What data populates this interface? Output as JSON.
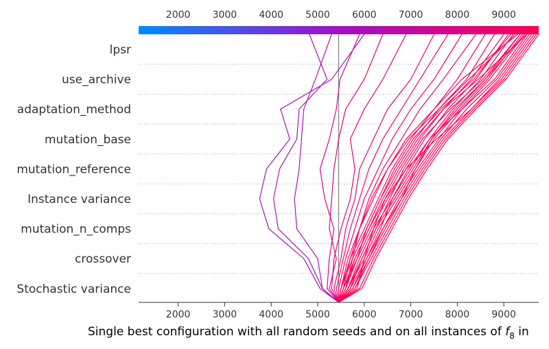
{
  "chart_data": {
    "type": "line",
    "xlabel_main": "Single best configuration with all random seeds and on all instances of ",
    "xlabel_symbol": "f",
    "xlabel_subscript": "8",
    "xlabel_tail": " in",
    "ylabel": "",
    "x_ticks": [
      "2000",
      "3000",
      "4000",
      "5000",
      "6000",
      "7000",
      "8000",
      "9000"
    ],
    "xlim": [
      1150,
      9750
    ],
    "base_value": 5450,
    "features": [
      "lpsr",
      "use_archive",
      "adaptation_method",
      "mutation_base",
      "mutation_reference",
      "Instance variance",
      "mutation_n_comps",
      "crossover",
      "Stochastic variance"
    ],
    "colorbar": {
      "min_color": "#008bfb",
      "mid_color": "#a010c8",
      "max_color": "#ff0051"
    },
    "grid": "horizontal dotted",
    "series": [
      {
        "values": [
          5450,
          5050,
          4700,
          3950,
          3750,
          3900,
          4400,
          4200,
          5300,
          6000
        ],
        "color": "#a116b5"
      },
      {
        "values": [
          5450,
          5100,
          4800,
          4150,
          4050,
          4180,
          4550,
          4600,
          5200,
          4820
        ],
        "color": "#a816b0"
      },
      {
        "values": [
          5450,
          5100,
          5000,
          4550,
          4500,
          4600,
          4650,
          4700,
          4950,
          5300
        ],
        "color": "#ad14ab"
      },
      {
        "values": [
          5450,
          5200,
          5250,
          5350,
          5150,
          5050,
          5250,
          5400,
          5480,
          5900
        ],
        "color": "#d0068c"
      },
      {
        "values": [
          5450,
          5250,
          5400,
          5250,
          5300,
          5350,
          5450,
          5600,
          6000,
          6400
        ],
        "color": "#d90482"
      },
      {
        "values": [
          5450,
          5300,
          5350,
          5500,
          5700,
          5800,
          5700,
          6000,
          6400,
          6900
        ],
        "color": "#e1027b"
      },
      {
        "values": [
          5450,
          5350,
          5500,
          5600,
          5800,
          5900,
          6200,
          6500,
          7000,
          7500
        ],
        "color": "#e80276"
      },
      {
        "values": [
          5450,
          5400,
          5550,
          5700,
          5900,
          6100,
          6400,
          6800,
          7200,
          7800
        ],
        "color": "#ed0171"
      },
      {
        "values": [
          5450,
          5450,
          5600,
          5800,
          6000,
          6300,
          6600,
          7000,
          7500,
          8100
        ],
        "color": "#f1016c"
      },
      {
        "values": [
          5450,
          5500,
          5650,
          5900,
          6100,
          6400,
          6800,
          7200,
          7700,
          8400
        ],
        "color": "#f40168"
      },
      {
        "values": [
          5450,
          5550,
          5700,
          6000,
          6300,
          6600,
          7000,
          7500,
          8000,
          8600
        ],
        "color": "#f70165"
      },
      {
        "values": [
          5450,
          5500,
          5750,
          6050,
          6350,
          6700,
          7100,
          7600,
          8200,
          8800
        ],
        "color": "#f90162"
      },
      {
        "values": [
          5450,
          5600,
          5800,
          6100,
          6450,
          6800,
          7200,
          7700,
          8300,
          9000
        ],
        "color": "#fa0160"
      },
      {
        "values": [
          5450,
          5550,
          5850,
          6150,
          6500,
          6900,
          7300,
          7800,
          8400,
          9100
        ],
        "color": "#fb005e"
      },
      {
        "values": [
          5450,
          5650,
          5900,
          6200,
          6600,
          7000,
          7400,
          7900,
          8500,
          9200
        ],
        "color": "#fc005c"
      },
      {
        "values": [
          5450,
          5600,
          5750,
          5900,
          6200,
          6500,
          6900,
          7500,
          8100,
          9300
        ],
        "color": "#fc005b"
      },
      {
        "values": [
          5450,
          5700,
          5950,
          6250,
          6650,
          7050,
          7450,
          8000,
          8600,
          9350
        ],
        "color": "#fd005a"
      },
      {
        "values": [
          5450,
          5650,
          6000,
          6300,
          6700,
          7100,
          7500,
          8050,
          8650,
          9400
        ],
        "color": "#fd0059"
      },
      {
        "values": [
          5450,
          5700,
          6050,
          6400,
          6750,
          7150,
          7600,
          8100,
          8700,
          9450
        ],
        "color": "#fd0058"
      },
      {
        "values": [
          5450,
          5750,
          6050,
          6350,
          6600,
          6950,
          7400,
          8100,
          8800,
          9500
        ],
        "color": "#fe0057"
      },
      {
        "values": [
          5450,
          5800,
          6100,
          6400,
          6800,
          7200,
          7650,
          8200,
          8850,
          9550
        ],
        "color": "#fe0056"
      },
      {
        "values": [
          5450,
          5850,
          6000,
          6200,
          6450,
          6900,
          7550,
          8300,
          8900,
          9600
        ],
        "color": "#fe0055"
      },
      {
        "values": [
          5450,
          5800,
          6150,
          6500,
          6850,
          7250,
          7700,
          8300,
          8950,
          9650
        ],
        "color": "#fe0054"
      },
      {
        "values": [
          5450,
          5900,
          6200,
          6550,
          6900,
          7300,
          7750,
          8350,
          9000,
          9700
        ],
        "color": "#ff0053"
      },
      {
        "values": [
          5450,
          5950,
          6250,
          6600,
          6950,
          7350,
          7800,
          8400,
          9050,
          9750
        ],
        "color": "#ff0052"
      },
      {
        "values": [
          5450,
          5500,
          5700,
          5900,
          6150,
          6500,
          6950,
          7600,
          8250,
          9250
        ],
        "color": "#fc005b"
      },
      {
        "values": [
          5450,
          5600,
          5850,
          6050,
          6350,
          6650,
          7050,
          7650,
          8350,
          9150
        ],
        "color": "#fb005e"
      },
      {
        "values": [
          5450,
          5650,
          5950,
          6250,
          6550,
          6850,
          7250,
          7850,
          8550,
          9350
        ],
        "color": "#fd005a"
      },
      {
        "values": [
          5450,
          5750,
          6100,
          6450,
          6800,
          7100,
          7450,
          7950,
          8600,
          9450
        ],
        "color": "#fd0058"
      },
      {
        "values": [
          5450,
          5550,
          5800,
          6100,
          6400,
          6750,
          7150,
          7700,
          8450,
          9500
        ],
        "color": "#fe0057"
      }
    ]
  }
}
